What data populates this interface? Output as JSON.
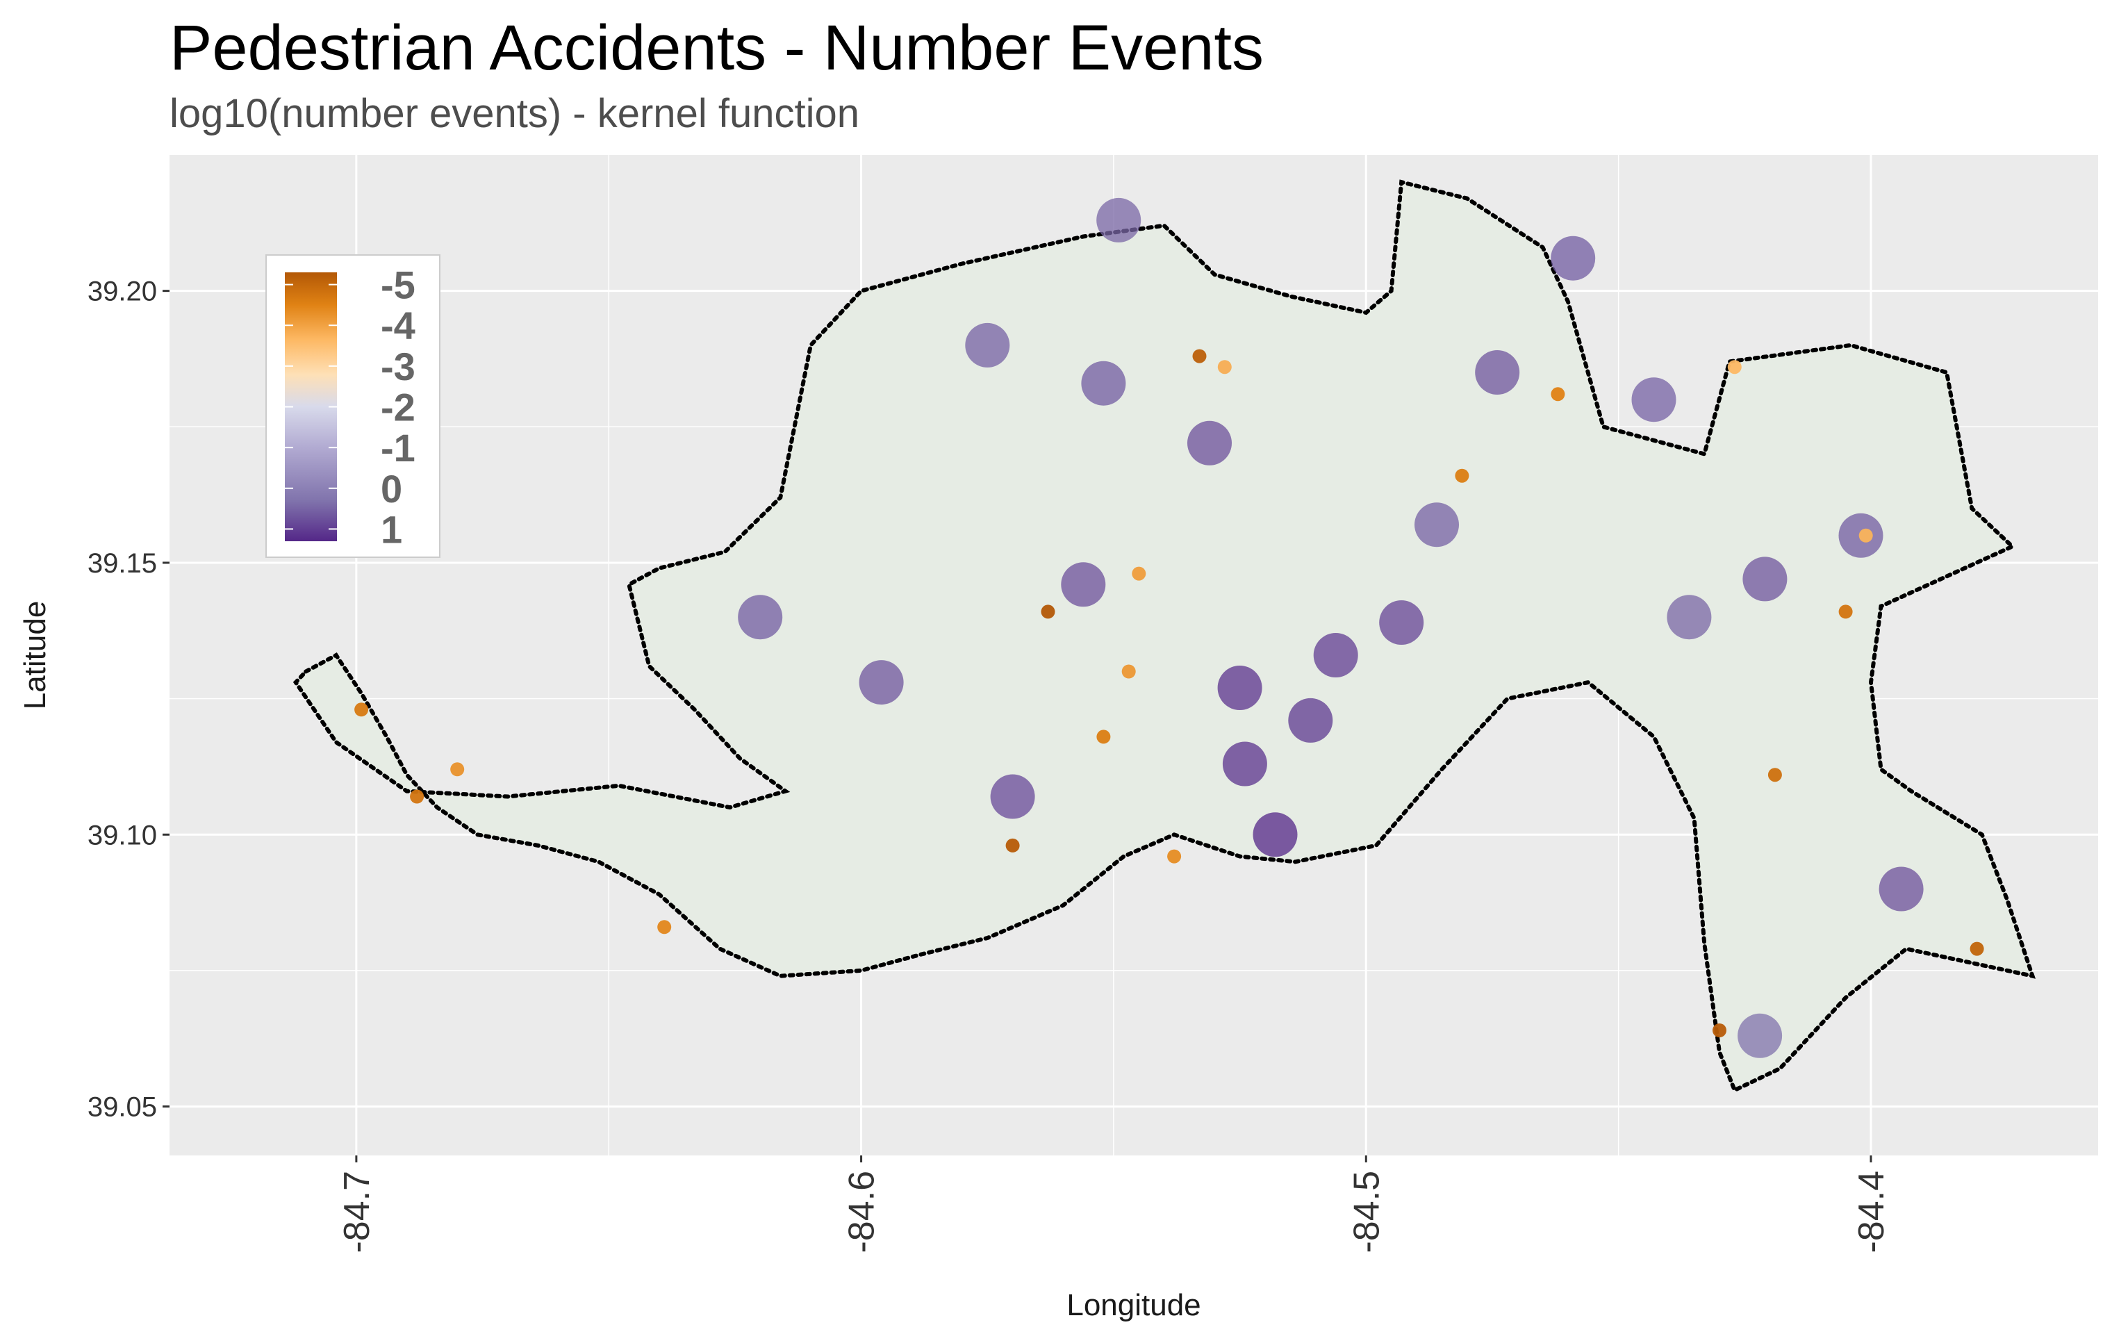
{
  "chart_data": {
    "type": "scatter",
    "title": "Pedestrian Accidents - Number Events",
    "subtitle": "log10(number events) - kernel function",
    "xlabel": "Longitude",
    "ylabel": "Latitude",
    "xlim": [
      -84.737,
      -84.355
    ],
    "ylim": [
      39.041,
      39.225
    ],
    "x_ticks": [
      {
        "value": -84.7,
        "label": "-84.7"
      },
      {
        "value": -84.6,
        "label": "-84.6"
      },
      {
        "value": -84.5,
        "label": "-84.5"
      },
      {
        "value": -84.4,
        "label": "-84.4"
      }
    ],
    "y_ticks": [
      {
        "value": 39.05,
        "label": "39.05"
      },
      {
        "value": 39.1,
        "label": "39.10"
      },
      {
        "value": 39.15,
        "label": "39.15"
      },
      {
        "value": 39.2,
        "label": "39.20"
      }
    ],
    "grid": true,
    "colors": {
      "panel": "#ebebeb",
      "grid": "#ffffff",
      "boundary": "#000000",
      "zero_points": "#a9c8a3",
      "scale": [
        "#542788",
        "#8073ac",
        "#b2abd2",
        "#d8daeb",
        "#fee0b6",
        "#fdb863",
        "#e08214",
        "#b35806"
      ]
    },
    "legend": {
      "placement": "top-left",
      "labels": [
        "-5",
        "-4",
        "-3",
        "-2",
        "-1",
        "0",
        "1"
      ],
      "range": [
        -5.3,
        1.3
      ]
    },
    "series": [
      {
        "name": "boundary",
        "type": "path",
        "values": [
          [
            -84.71,
            39.13
          ],
          [
            -84.704,
            39.133
          ],
          [
            -84.699,
            39.126
          ],
          [
            -84.694,
            39.118
          ],
          [
            -84.69,
            39.111
          ],
          [
            -84.684,
            39.105
          ],
          [
            -84.676,
            39.1
          ],
          [
            -84.664,
            39.098
          ],
          [
            -84.652,
            39.095
          ],
          [
            -84.64,
            39.089
          ],
          [
            -84.628,
            39.079
          ],
          [
            -84.616,
            39.074
          ],
          [
            -84.6,
            39.075
          ],
          [
            -84.588,
            39.078
          ],
          [
            -84.575,
            39.081
          ],
          [
            -84.56,
            39.087
          ],
          [
            -84.548,
            39.096
          ],
          [
            -84.538,
            39.1
          ],
          [
            -84.525,
            39.096
          ],
          [
            -84.514,
            39.095
          ],
          [
            -84.498,
            39.098
          ],
          [
            -84.485,
            39.112
          ],
          [
            -84.472,
            39.125
          ],
          [
            -84.456,
            39.128
          ],
          [
            -84.443,
            39.118
          ],
          [
            -84.435,
            39.103
          ],
          [
            -84.433,
            39.08
          ],
          [
            -84.43,
            39.06
          ],
          [
            -84.427,
            39.053
          ],
          [
            -84.418,
            39.057
          ],
          [
            -84.405,
            39.07
          ],
          [
            -84.393,
            39.079
          ],
          [
            -84.368,
            39.074
          ],
          [
            -84.373,
            39.088
          ],
          [
            -84.378,
            39.1
          ],
          [
            -84.392,
            39.108
          ],
          [
            -84.398,
            39.112
          ],
          [
            -84.4,
            39.128
          ],
          [
            -84.398,
            39.142
          ],
          [
            -84.372,
            39.153
          ],
          [
            -84.38,
            39.16
          ],
          [
            -84.385,
            39.185
          ],
          [
            -84.404,
            39.19
          ],
          [
            -84.428,
            39.187
          ],
          [
            -84.433,
            39.17
          ],
          [
            -84.453,
            39.175
          ],
          [
            -84.46,
            39.198
          ],
          [
            -84.465,
            39.208
          ],
          [
            -84.48,
            39.217
          ],
          [
            -84.493,
            39.22
          ],
          [
            -84.495,
            39.2
          ],
          [
            -84.5,
            39.196
          ],
          [
            -84.515,
            39.199
          ],
          [
            -84.53,
            39.203
          ],
          [
            -84.54,
            39.212
          ],
          [
            -84.556,
            39.21
          ],
          [
            -84.58,
            39.205
          ],
          [
            -84.6,
            39.2
          ],
          [
            -84.61,
            39.19
          ],
          [
            -84.616,
            39.162
          ],
          [
            -84.627,
            39.152
          ],
          [
            -84.64,
            39.149
          ],
          [
            -84.646,
            39.146
          ],
          [
            -84.642,
            39.131
          ],
          [
            -84.633,
            39.123
          ],
          [
            -84.624,
            39.114
          ],
          [
            -84.615,
            39.108
          ],
          [
            -84.626,
            39.105
          ],
          [
            -84.648,
            39.109
          ],
          [
            -84.67,
            39.107
          ],
          [
            -84.69,
            39.108
          ],
          [
            -84.704,
            39.117
          ],
          [
            -84.712,
            39.128
          ],
          [
            -84.71,
            39.13
          ]
        ]
      },
      {
        "name": "density",
        "type": "points",
        "values": [
          [
            -84.518,
            39.1,
            1.3
          ],
          [
            -84.524,
            39.113,
            1.1
          ],
          [
            -84.511,
            39.121,
            1.0
          ],
          [
            -84.525,
            39.127,
            1.1
          ],
          [
            -84.506,
            39.133,
            0.9
          ],
          [
            -84.493,
            39.139,
            0.8
          ],
          [
            -84.556,
            39.146,
            0.6
          ],
          [
            -84.57,
            39.107,
            0.7
          ],
          [
            -84.596,
            39.128,
            0.5
          ],
          [
            -84.62,
            39.14,
            0.4
          ],
          [
            -84.552,
            39.183,
            0.4
          ],
          [
            -84.531,
            39.172,
            0.6
          ],
          [
            -84.575,
            39.19,
            0.3
          ],
          [
            -84.474,
            39.185,
            0.5
          ],
          [
            -84.459,
            39.206,
            0.4
          ],
          [
            -84.421,
            39.147,
            0.5
          ],
          [
            -84.402,
            39.155,
            0.4
          ],
          [
            -84.436,
            39.14,
            0.2
          ],
          [
            -84.443,
            39.18,
            0.3
          ],
          [
            -84.394,
            39.09,
            0.6
          ],
          [
            -84.422,
            39.063,
            0.0
          ],
          [
            -84.549,
            39.213,
            0.2
          ],
          [
            -84.486,
            39.157,
            0.3
          ],
          [
            -84.563,
            39.141,
            -5.3
          ],
          [
            -84.533,
            39.188,
            -5.1
          ],
          [
            -84.57,
            39.098,
            -5.2
          ],
          [
            -84.43,
            39.064,
            -5.2
          ],
          [
            -84.379,
            39.079,
            -5.0
          ],
          [
            -84.419,
            39.111,
            -4.7
          ],
          [
            -84.405,
            39.141,
            -4.6
          ],
          [
            -84.481,
            39.166,
            -4.4
          ],
          [
            -84.462,
            39.181,
            -4.3
          ],
          [
            -84.552,
            39.118,
            -4.4
          ],
          [
            -84.699,
            39.123,
            -4.5
          ],
          [
            -84.688,
            39.107,
            -4.6
          ],
          [
            -84.68,
            39.112,
            -4.0
          ],
          [
            -84.639,
            39.083,
            -4.2
          ],
          [
            -84.538,
            39.096,
            -4.1
          ],
          [
            -84.547,
            39.13,
            -3.9
          ],
          [
            -84.545,
            39.148,
            -3.8
          ],
          [
            -84.528,
            39.186,
            -3.5
          ],
          [
            -84.401,
            39.155,
            -3.4
          ],
          [
            -84.427,
            39.186,
            -3.3
          ]
        ]
      }
    ]
  }
}
